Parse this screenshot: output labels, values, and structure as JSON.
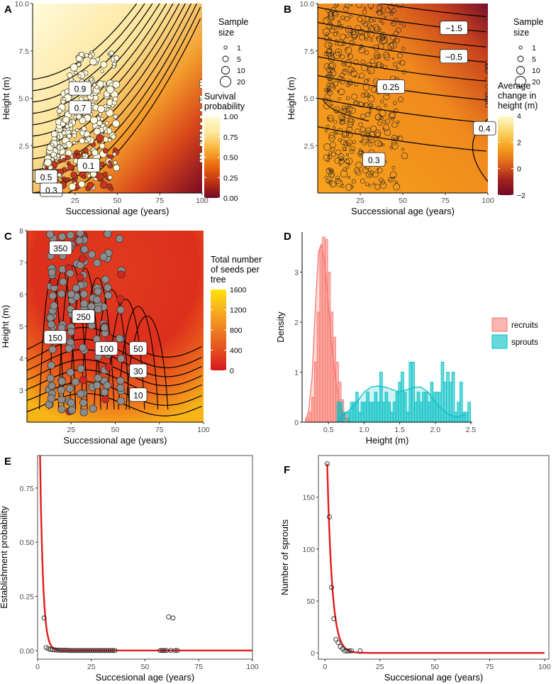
{
  "chart_data": [
    {
      "id": "A",
      "panel_label": "A",
      "type": "heatmap",
      "xlabel": "Successional age (years)",
      "ylabel": "Height (m)",
      "xlim": [
        0,
        100
      ],
      "ylim": [
        0,
        10
      ],
      "xticks": [
        {
          "v": 25,
          "label": "25"
        },
        {
          "v": 50,
          "label": "50"
        },
        {
          "v": 75,
          "label": "75"
        },
        {
          "v": 100,
          "label": "100"
        }
      ],
      "yticks": [
        {
          "v": 2.5,
          "label": "2.5"
        },
        {
          "v": 5,
          "label": "5.0"
        },
        {
          "v": 7.5,
          "label": "7.5"
        },
        {
          "v": 10,
          "label": "10.0"
        }
      ],
      "legend_size": {
        "title": [
          "Sample",
          "size"
        ],
        "items": [
          {
            "v": 1,
            "label": "1"
          },
          {
            "v": 5,
            "label": "5"
          },
          {
            "v": 10,
            "label": "10"
          },
          {
            "v": 20,
            "label": "20"
          }
        ]
      },
      "colorbar": {
        "title": [
          "Survival",
          "probability"
        ],
        "ticks": [
          "1.00",
          "0.75",
          "0.50",
          "0.25",
          "0.00"
        ],
        "colors": [
          "#fffbd3",
          "#fde79a",
          "#f9b339",
          "#ec6a10",
          "#c23212",
          "#6e0a25"
        ]
      },
      "contour_labels": [
        {
          "x": 28,
          "y": 5.5,
          "label": "0.9"
        },
        {
          "x": 28,
          "y": 4.5,
          "label": "0.7"
        },
        {
          "x": 33,
          "y": 1.45,
          "label": "0.1"
        },
        {
          "x": 8,
          "y": 0.85,
          "label": "0.5"
        },
        {
          "x": 11,
          "y": 0.15,
          "label": "0.3"
        }
      ]
    },
    {
      "id": "B",
      "panel_label": "B",
      "type": "heatmap",
      "xlabel": "Successional age (years)",
      "ylabel": "Height (m)",
      "xlim": [
        0,
        100
      ],
      "ylim": [
        0,
        10
      ],
      "xticks": [
        {
          "v": 25,
          "label": "25"
        },
        {
          "v": 50,
          "label": "50"
        },
        {
          "v": 75,
          "label": "75"
        },
        {
          "v": 100,
          "label": "100"
        }
      ],
      "yticks": [
        {
          "v": 2.5,
          "label": "2.5"
        },
        {
          "v": 5,
          "label": "5.0"
        },
        {
          "v": 7.5,
          "label": "7.5"
        },
        {
          "v": 10,
          "label": "10.0"
        }
      ],
      "legend_size": {
        "title": [
          "Sample",
          "size"
        ],
        "items": [
          {
            "v": 1,
            "label": "1"
          },
          {
            "v": 5,
            "label": "5"
          },
          {
            "v": 10,
            "label": "10"
          },
          {
            "v": 20,
            "label": "20"
          }
        ]
      },
      "colorbar": {
        "title": [
          "Average",
          "change in",
          "height (m)"
        ],
        "ticks": [
          "4",
          "2",
          "0",
          "−2"
        ],
        "colors": [
          "#fffbd3",
          "#fbd56a",
          "#f6a21c",
          "#e0661a",
          "#a4241e",
          "#6e0a25"
        ]
      },
      "contour_labels": [
        {
          "x": 80,
          "y": 8.7,
          "label": "−1.5"
        },
        {
          "x": 80,
          "y": 7.2,
          "label": "−0.5"
        },
        {
          "x": 43,
          "y": 5.6,
          "label": "0.25"
        },
        {
          "x": 98,
          "y": 3.4,
          "label": "0.4"
        },
        {
          "x": 33,
          "y": 1.75,
          "label": "0.3"
        }
      ]
    },
    {
      "id": "C",
      "panel_label": "C",
      "type": "heatmap",
      "xlabel": "Successional age (years)",
      "ylabel": "Height (m)",
      "xlim": [
        0,
        100
      ],
      "ylim": [
        2,
        8
      ],
      "xticks": [
        {
          "v": 25,
          "label": "25"
        },
        {
          "v": 50,
          "label": "50"
        },
        {
          "v": 75,
          "label": "75"
        },
        {
          "v": 100,
          "label": "100"
        }
      ],
      "yticks": [
        {
          "v": 3,
          "label": "3"
        },
        {
          "v": 4,
          "label": "4"
        },
        {
          "v": 5,
          "label": "5"
        },
        {
          "v": 6,
          "label": "6"
        },
        {
          "v": 7,
          "label": "7"
        },
        {
          "v": 8,
          "label": "8"
        }
      ],
      "colorbar": {
        "title": [
          "Total number",
          "of seeds per",
          "tree"
        ],
        "ticks": [
          "1600",
          "1200",
          "800",
          "400",
          "0"
        ],
        "colors": [
          "#ffe20a",
          "#f7b11e",
          "#ee7f22",
          "#e44e1f",
          "#d8181b"
        ]
      },
      "contour_labels": [
        {
          "x": 19,
          "y": 7.45,
          "label": "350"
        },
        {
          "x": 32,
          "y": 5.3,
          "label": "250"
        },
        {
          "x": 16,
          "y": 4.65,
          "label": "150"
        },
        {
          "x": 45,
          "y": 4.3,
          "label": "100"
        },
        {
          "x": 63,
          "y": 4.3,
          "label": "50"
        },
        {
          "x": 63,
          "y": 3.6,
          "label": "30"
        },
        {
          "x": 63,
          "y": 2.85,
          "label": "10"
        }
      ]
    },
    {
      "id": "D",
      "panel_label": "D",
      "type": "bar",
      "xlabel": "Height (m)",
      "ylabel": "Density",
      "xlim": [
        0.13,
        2.52
      ],
      "ylim": [
        0,
        3.8
      ],
      "xticks": [
        {
          "v": 0.5,
          "label": "0.5"
        },
        {
          "v": 1.0,
          "label": "1.0"
        },
        {
          "v": 1.5,
          "label": "1.5"
        },
        {
          "v": 2.0,
          "label": "2.0"
        },
        {
          "v": 2.5,
          "label": "2.5"
        }
      ],
      "yticks": [
        {
          "v": 0,
          "label": "0"
        },
        {
          "v": 1,
          "label": "1"
        },
        {
          "v": 2,
          "label": "2"
        },
        {
          "v": 3,
          "label": "3"
        }
      ],
      "bin_width": 0.0375,
      "series": [
        {
          "name": "recruits",
          "color": "#f8766d",
          "bins_start": 0.19,
          "values": [
            0.1,
            0.2,
            0.5,
            1.2,
            2.2,
            3.5,
            3.7,
            3.65,
            3.0,
            2.2,
            1.7,
            1.2,
            0.8,
            0.45,
            0.2,
            0.08
          ],
          "density": [
            [
              0.17,
              0.02
            ],
            [
              0.22,
              0.2
            ],
            [
              0.27,
              0.9
            ],
            [
              0.32,
              2.4
            ],
            [
              0.36,
              3.4
            ],
            [
              0.4,
              3.55
            ],
            [
              0.44,
              3.25
            ],
            [
              0.49,
              2.5
            ],
            [
              0.54,
              1.6
            ],
            [
              0.6,
              0.85
            ],
            [
              0.66,
              0.35
            ],
            [
              0.72,
              0.1
            ],
            [
              0.8,
              0.02
            ]
          ]
        },
        {
          "name": "sprouts",
          "color": "#00bfc4",
          "bins_start": 0.62,
          "values": [
            0.4,
            0.4,
            0.2,
            0,
            0.2,
            0.4,
            0.4,
            0.6,
            0.2,
            0.4,
            0.4,
            0.6,
            0.4,
            0.4,
            0.6,
            0.4,
            1.0,
            0.4,
            0.6,
            0.4,
            0.2,
            0.4,
            0.6,
            0.8,
            1.0,
            0.6,
            0.2,
            1.2,
            1.2,
            0.4,
            0.6,
            0.4,
            0.6,
            0.6,
            0.4,
            0.8,
            0.6,
            0.6,
            0.6,
            1.2,
            0.8,
            1.0,
            0.8,
            1.0,
            0.2,
            0.4,
            0.8,
            0.2,
            0.2,
            0.4
          ],
          "density": [
            [
              0.62,
              0.05
            ],
            [
              0.7,
              0.12
            ],
            [
              0.8,
              0.25
            ],
            [
              0.9,
              0.4
            ],
            [
              1.0,
              0.6
            ],
            [
              1.1,
              0.7
            ],
            [
              1.2,
              0.72
            ],
            [
              1.3,
              0.7
            ],
            [
              1.4,
              0.65
            ],
            [
              1.5,
              0.6
            ],
            [
              1.6,
              0.65
            ],
            [
              1.7,
              0.7
            ],
            [
              1.8,
              0.7
            ],
            [
              1.9,
              0.6
            ],
            [
              2.0,
              0.4
            ],
            [
              2.1,
              0.25
            ],
            [
              2.2,
              0.15
            ],
            [
              2.3,
              0.1
            ],
            [
              2.42,
              0.15
            ]
          ]
        }
      ],
      "legend": [
        "recruits",
        "sprouts"
      ]
    },
    {
      "id": "E",
      "panel_label": "E",
      "type": "line",
      "xlabel": "Succesional age (years)",
      "ylabel": "Establishment probability",
      "xlim": [
        0,
        100
      ],
      "ylim": [
        -0.04,
        0.9
      ],
      "xticks": [
        {
          "v": 0,
          "label": "0"
        },
        {
          "v": 25,
          "label": "25"
        },
        {
          "v": 50,
          "label": "50"
        },
        {
          "v": 75,
          "label": "75"
        },
        {
          "v": 100,
          "label": "100"
        }
      ],
      "yticks": [
        {
          "v": 0,
          "label": "0.00"
        },
        {
          "v": 0.25,
          "label": "0.25"
        },
        {
          "v": 0.5,
          "label": "0.50"
        },
        {
          "v": 0.75,
          "label": "0.75"
        }
      ],
      "curve": {
        "color": "#e41a1c",
        "a": 1.0,
        "k": 0.72,
        "x0": 1
      },
      "points": [
        [
          3,
          0.15
        ],
        [
          4,
          0.014
        ],
        [
          5,
          0.008
        ],
        [
          6,
          0.005
        ],
        [
          7,
          0.004
        ],
        [
          8,
          0.003
        ],
        [
          9,
          0.002
        ],
        [
          10,
          0.002
        ],
        [
          11,
          0.001
        ],
        [
          12,
          0.001
        ],
        [
          13,
          0.001
        ],
        [
          14,
          0.001
        ],
        [
          15,
          0
        ],
        [
          16,
          0
        ],
        [
          17,
          0
        ],
        [
          18,
          0
        ],
        [
          19,
          0
        ],
        [
          20,
          0
        ],
        [
          21,
          0
        ],
        [
          22,
          0
        ],
        [
          23,
          0
        ],
        [
          24,
          0
        ],
        [
          25,
          0
        ],
        [
          26,
          0
        ],
        [
          27,
          0
        ],
        [
          28,
          0
        ],
        [
          29,
          0
        ],
        [
          30,
          0
        ],
        [
          31,
          0
        ],
        [
          32,
          0
        ],
        [
          33,
          0
        ],
        [
          34,
          0
        ],
        [
          35,
          0
        ],
        [
          36,
          0
        ],
        [
          57,
          0
        ],
        [
          58,
          0
        ],
        [
          59,
          0
        ],
        [
          60,
          0
        ],
        [
          61,
          0.155
        ],
        [
          62,
          0
        ],
        [
          63,
          0.15
        ],
        [
          64,
          0
        ],
        [
          65,
          0
        ]
      ]
    },
    {
      "id": "F",
      "panel_label": "F",
      "type": "line",
      "xlabel": "Succesional age (years)",
      "ylabel": "Number of sprouts",
      "xlim": [
        -3,
        102
      ],
      "ylim": [
        -6,
        190
      ],
      "xticks": [
        {
          "v": 0,
          "label": "0"
        },
        {
          "v": 25,
          "label": "25"
        },
        {
          "v": 50,
          "label": "50"
        },
        {
          "v": 75,
          "label": "75"
        },
        {
          "v": 100,
          "label": "100"
        }
      ],
      "yticks": [
        {
          "v": 0,
          "label": "0"
        },
        {
          "v": 50,
          "label": "50"
        },
        {
          "v": 100,
          "label": "100"
        },
        {
          "v": 150,
          "label": "150"
        }
      ],
      "curve": {
        "color": "#e41a1c",
        "a": 182,
        "k": 0.45,
        "x0": 1
      },
      "points": [
        [
          1,
          182
        ],
        [
          2,
          131
        ],
        [
          3,
          63
        ],
        [
          4,
          33
        ],
        [
          5,
          13
        ],
        [
          6,
          10
        ],
        [
          7,
          6
        ],
        [
          8,
          4
        ],
        [
          9,
          2
        ],
        [
          10,
          2
        ],
        [
          11,
          2
        ],
        [
          12,
          2
        ],
        [
          16,
          2
        ]
      ]
    }
  ]
}
